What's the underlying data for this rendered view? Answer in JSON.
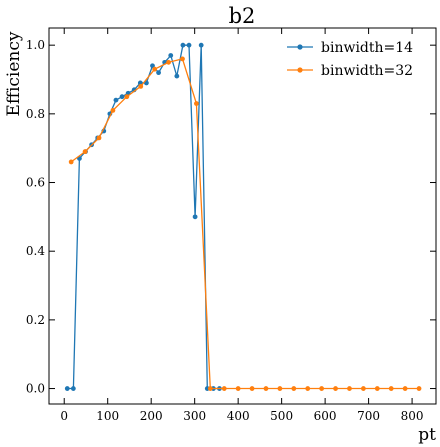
{
  "chart_data": {
    "type": "line",
    "title": "b2",
    "xlabel": "pt",
    "ylabel": "Efficiency",
    "xlim": [
      -35,
      855
    ],
    "ylim": [
      -0.045,
      1.05
    ],
    "xticks": [
      0,
      100,
      200,
      300,
      400,
      500,
      600,
      700,
      800
    ],
    "yticks": [
      0.0,
      0.2,
      0.4,
      0.6,
      0.8,
      1.0
    ],
    "xtick_labels": [
      "0",
      "100",
      "200",
      "300",
      "400",
      "500",
      "600",
      "700",
      "800"
    ],
    "ytick_labels": [
      "0.0",
      "0.2",
      "0.4",
      "0.6",
      "0.8",
      "1.0"
    ],
    "grid": false,
    "legend_position": "top-right",
    "series": [
      {
        "name": "binwidth=14",
        "color": "#1f77b4",
        "x": [
          7,
          21,
          35,
          49,
          63,
          77,
          91,
          105,
          119,
          133,
          147,
          161,
          175,
          189,
          203,
          217,
          231,
          245,
          259,
          273,
          287,
          301,
          315,
          329,
          343,
          357
        ],
        "y": [
          0.0,
          0.0,
          0.67,
          0.69,
          0.71,
          0.73,
          0.75,
          0.8,
          0.84,
          0.85,
          0.86,
          0.87,
          0.89,
          0.89,
          0.94,
          0.92,
          0.95,
          0.97,
          0.91,
          1.0,
          1.0,
          0.5,
          1.0,
          0.0,
          0.0,
          0.0
        ]
      },
      {
        "name": "binwidth=32",
        "color": "#ff7f0e",
        "x": [
          16,
          48,
          80,
          112,
          144,
          176,
          208,
          240,
          272,
          304,
          336,
          368,
          400,
          432,
          464,
          496,
          528,
          560,
          592,
          624,
          656,
          688,
          720,
          752,
          784,
          816
        ],
        "y": [
          0.66,
          0.69,
          0.73,
          0.81,
          0.85,
          0.88,
          0.93,
          0.95,
          0.96,
          0.83,
          0.0,
          0.0,
          0.0,
          0.0,
          0.0,
          0.0,
          0.0,
          0.0,
          0.0,
          0.0,
          0.0,
          0.0,
          0.0,
          0.0,
          0.0,
          0.0
        ]
      }
    ]
  }
}
